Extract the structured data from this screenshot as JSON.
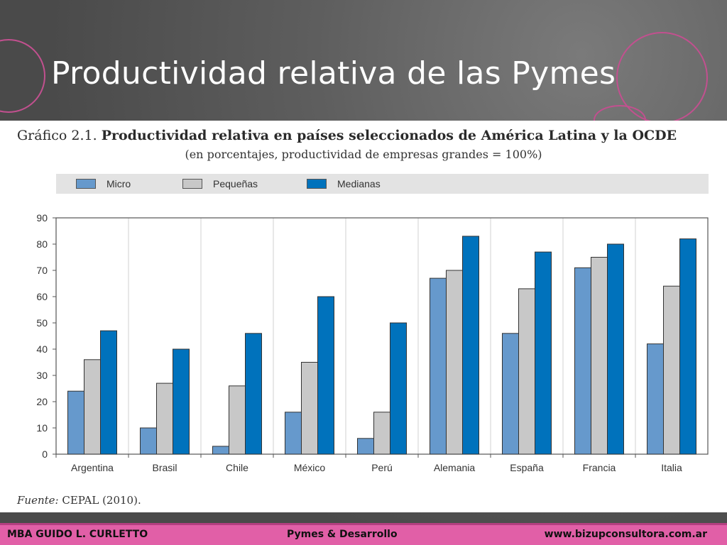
{
  "slide": {
    "title": "Productividad relativa de las Pymes",
    "footer_left": "MBA GUIDO L. CURLETTO",
    "footer_center": "Pymes & Desarrollo",
    "footer_right": "www.bizupconsultora.com.ar"
  },
  "figure": {
    "label": "Gráfico 2.1.",
    "title": "Productividad relativa en países seleccionados de América Latina y la OCDE",
    "subtitle": "(en porcentajes, productividad de empresas grandes = 100%)",
    "source_label": "Fuente:",
    "source_text": "CEPAL (2010)."
  },
  "colors": {
    "micro": "#6699cc",
    "pequenas": "#c8c8c8",
    "medianas": "#0072bc",
    "footer": "#e15fa7"
  },
  "chart_data": {
    "type": "bar",
    "categories": [
      "Argentina",
      "Brasil",
      "Chile",
      "México",
      "Perú",
      "Alemania",
      "España",
      "Francia",
      "Italia"
    ],
    "series": [
      {
        "name": "Micro",
        "values": [
          24,
          10,
          3,
          16,
          6,
          67,
          46,
          71,
          42
        ]
      },
      {
        "name": "Pequeñas",
        "values": [
          36,
          27,
          26,
          35,
          16,
          70,
          63,
          75,
          64
        ]
      },
      {
        "name": "Medianas",
        "values": [
          47,
          40,
          46,
          60,
          50,
          83,
          77,
          80,
          82
        ]
      }
    ],
    "ylim": [
      0,
      90
    ],
    "yticks": [
      0,
      10,
      20,
      30,
      40,
      50,
      60,
      70,
      80,
      90
    ],
    "grid": "vertical separators",
    "legend_position": "top"
  }
}
